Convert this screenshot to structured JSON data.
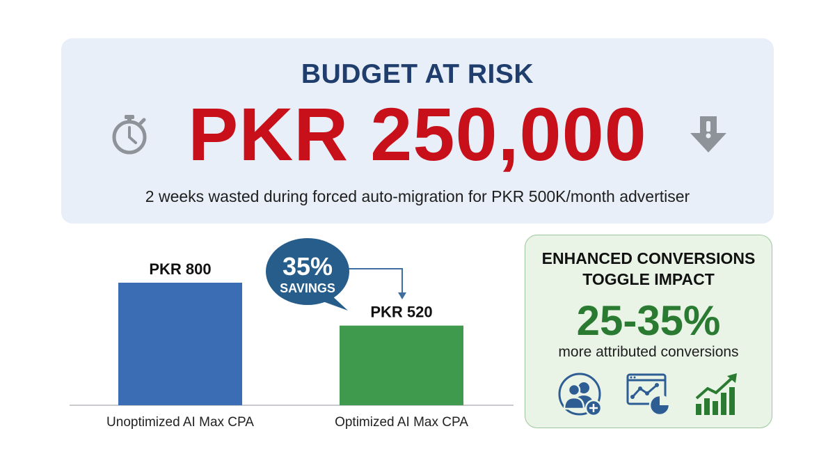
{
  "hero": {
    "title": "BUDGET AT RISK",
    "amount": "PKR 250,000",
    "subtitle": "2 weeks wasted during forced auto-migration for PKR 500K/month advertiser",
    "left_icon": "stopwatch-icon",
    "right_icon": "alert-down-arrow-icon"
  },
  "chart_data": {
    "type": "bar",
    "categories": [
      "Unoptimized AI Max CPA",
      "Optimized AI Max CPA"
    ],
    "values": [
      800,
      520
    ],
    "data_labels": [
      "PKR 800",
      "PKR 520"
    ],
    "colors": [
      "#3b6db4",
      "#3f9a4d"
    ],
    "title": "",
    "xlabel": "",
    "ylabel": "",
    "grid": false
  },
  "callout": {
    "percent": "35%",
    "label": "SAVINGS",
    "color": "#275d8b"
  },
  "card": {
    "title_line1": "ENHANCED CONVERSIONS",
    "title_line2": "TOGGLE IMPACT",
    "percent": "25-35%",
    "description": "more attributed conversions",
    "icons": [
      "add-users-icon",
      "analytics-dashboard-icon",
      "growth-chart-icon"
    ]
  },
  "colors": {
    "hero_bg": "#e8eff8",
    "title": "#1f3d6d",
    "amount": "#c8101b",
    "card_bg": "#e9f4e7",
    "card_accent": "#2a7b31",
    "icon_blue": "#2e5d94",
    "icon_green": "#2a7b31"
  }
}
